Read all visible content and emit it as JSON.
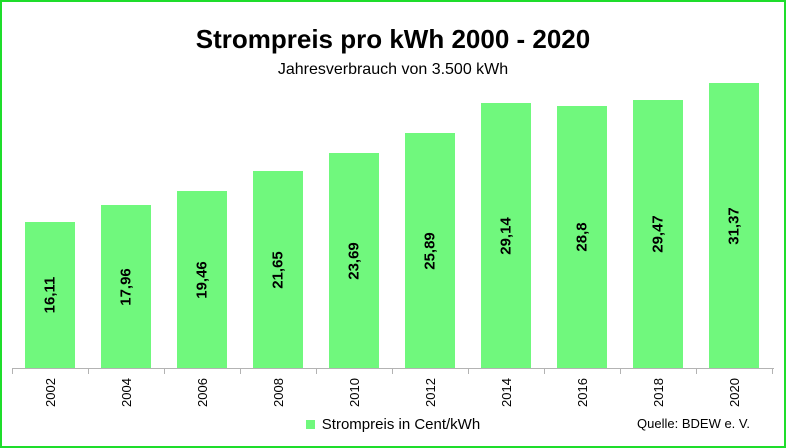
{
  "window": {
    "frame_color": "#1edd2b",
    "background": "#ffffff"
  },
  "header": {
    "title": "Strompreis pro kWh 2000 - 2020",
    "subtitle": "Jahresverbrauch von 3.500 kWh"
  },
  "legend": {
    "label": "Strompreis in Cent/kWh",
    "swatch_color": "#70f87d"
  },
  "source": {
    "text": "Quelle: BDEW e. V."
  },
  "chart_data": {
    "type": "bar",
    "title": "Strompreis pro kWh 2000 - 2020",
    "subtitle": "Jahresverbrauch von 3.500 kWh",
    "categories": [
      "2002",
      "2004",
      "2006",
      "2008",
      "2010",
      "2012",
      "2014",
      "2016",
      "2018",
      "2020"
    ],
    "values": [
      16.11,
      17.96,
      19.46,
      21.65,
      23.69,
      25.89,
      29.14,
      28.8,
      29.47,
      31.37
    ],
    "value_labels": [
      "16,11",
      "17,96",
      "19,46",
      "21,65",
      "23,69",
      "25,89",
      "29,14",
      "28,8",
      "29,47",
      "31,37"
    ],
    "legend": [
      "Strompreis in Cent/kWh"
    ],
    "legend_position": "bottom",
    "xlabel": "",
    "ylabel": "",
    "ylim": [
      0,
      31.37
    ],
    "grid": false,
    "bar_color": "#70f87d",
    "axis_color": "#b3b3b3",
    "value_label_rotation_deg": 90,
    "x_tick_label_rotation_deg": 90
  }
}
